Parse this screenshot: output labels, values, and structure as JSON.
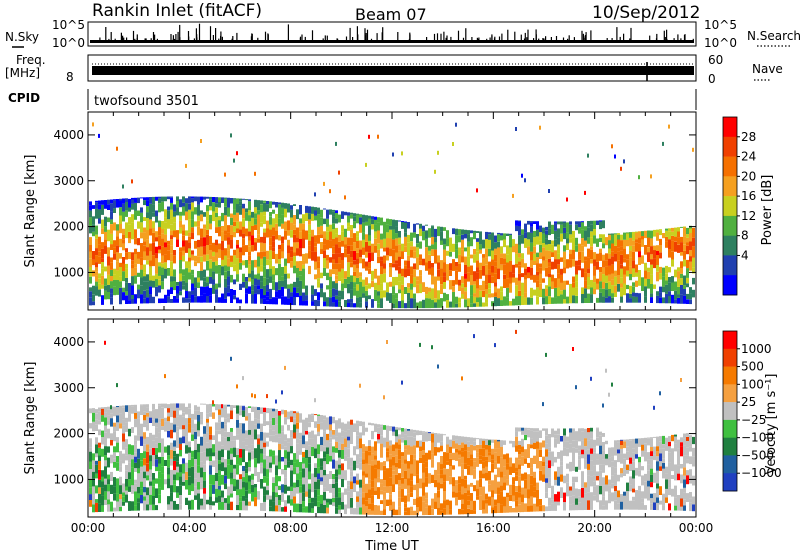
{
  "header": {
    "title": "Rankin Inlet (fitACF)",
    "beam": "Beam 07",
    "date": "10/Sep/2012"
  },
  "strips": {
    "nsky_label": "N.Sky",
    "nsearch_label": "N.Search",
    "nsky_ticks": [
      "10^5",
      "10^0"
    ],
    "freq_label_1": "Freq.",
    "freq_label_2": "[MHz]",
    "freq_ticks": [
      "8"
    ],
    "nave_label": "Nave",
    "nave_ticks": [
      "60",
      "0"
    ],
    "cpid_label": "CPID",
    "cpid_value": "twofsound 3501"
  },
  "colors": {
    "power_scale": [
      "#0000ff",
      "#2040b0",
      "#2e8060",
      "#50b040",
      "#c8d020",
      "#f5a020",
      "#f57000",
      "#f04000",
      "#ff0000"
    ],
    "velocity_scale": [
      "#ff0000",
      "#f04000",
      "#f57a00",
      "#f5a040",
      "#c0c0c0",
      "#40c040",
      "#208040",
      "#2060a0",
      "#2040c0"
    ]
  },
  "chart_data": [
    {
      "type": "heatmap",
      "name": "power",
      "ylabel": "Slant Range [km]",
      "xlabel": "",
      "ylim": [
        180,
        4500
      ],
      "yticks": [
        "1000",
        "2000",
        "3000",
        "4000"
      ],
      "xticks": [
        "00:00",
        "04:00",
        "08:00",
        "12:00",
        "16:00",
        "20:00",
        "00:00"
      ],
      "colorbar": {
        "label": "Power [dB]",
        "ticks": [
          "4",
          "8",
          "12",
          "16",
          "20",
          "24",
          "28"
        ]
      }
    },
    {
      "type": "heatmap",
      "name": "velocity",
      "ylabel": "Slant Range [km]",
      "xlabel": "Time UT",
      "ylim": [
        180,
        4500
      ],
      "yticks": [
        "1000",
        "2000",
        "3000",
        "4000"
      ],
      "xticks": [
        "00:00",
        "04:00",
        "08:00",
        "12:00",
        "16:00",
        "20:00",
        "00:00"
      ],
      "colorbar": {
        "label": "Velocity [m s⁻¹]",
        "ticks": [
          "1000",
          "500",
          "100",
          "25",
          "−25",
          "−100",
          "−500",
          "−1000"
        ]
      }
    }
  ]
}
